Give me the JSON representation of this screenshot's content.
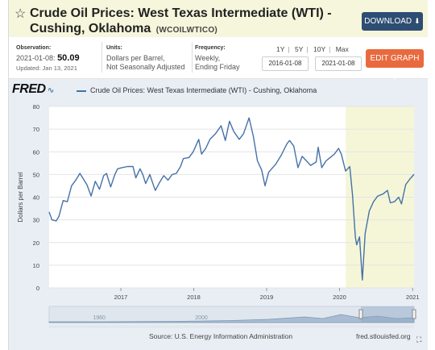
{
  "header": {
    "title": "Crude Oil Prices: West Texas Intermediate (WTI) - Cushing, Oklahoma",
    "series_code": "(WCOILWTICO)",
    "download_label": "DOWNLOAD"
  },
  "meta": {
    "observation_label": "Observation:",
    "observation_date": "2021-01-08:",
    "observation_value": "50.09",
    "updated": "Updated: Jan 13, 2021",
    "units_label": "Units:",
    "units_line1": "Dollars per Barrel,",
    "units_line2": "Not Seasonally Adjusted",
    "frequency_label": "Frequency:",
    "frequency_line1": "Weekly,",
    "frequency_line2": "Ending Friday"
  },
  "range_buttons": [
    "1Y",
    "5Y",
    "10Y",
    "Max"
  ],
  "date_start": "2016-01-08",
  "date_end": "2021-01-08",
  "edit_label": "EDIT GRAPH",
  "graph": {
    "logo": "FRED",
    "legend": "Crude Oil Prices: West Texas Intermediate (WTI) - Cushing, Oklahoma",
    "source": "Source: U.S. Energy Information Administration",
    "site": "fred.stlouisfed.org"
  },
  "chart_data": {
    "type": "line",
    "ylabel": "Dollars per Barrel",
    "ylim": [
      0,
      80
    ],
    "yticks": [
      0,
      10,
      20,
      30,
      40,
      50,
      60,
      70,
      80
    ],
    "xlim": [
      "2016-01-08",
      "2021-01-08"
    ],
    "xticks": [
      {
        "label": "2017",
        "date": "2017-01-01"
      },
      {
        "label": "2018",
        "date": "2018-01-01"
      },
      {
        "label": "2019",
        "date": "2019-01-01"
      },
      {
        "label": "2020",
        "date": "2020-01-01"
      },
      {
        "label": "2021",
        "date": "2021-01-01"
      }
    ],
    "recession": {
      "start": "2020-02-01",
      "end": "2021-01-08"
    },
    "navigator_labels": [
      "1960",
      "2000"
    ],
    "grid": true,
    "series": [
      {
        "color": "#4572a7",
        "points": [
          [
            "2016-01-08",
            33.5
          ],
          [
            "2016-01-22",
            30.0
          ],
          [
            "2016-02-12",
            29.5
          ],
          [
            "2016-02-26",
            31.5
          ],
          [
            "2016-03-18",
            38.5
          ],
          [
            "2016-04-08",
            38.0
          ],
          [
            "2016-04-29",
            45.0
          ],
          [
            "2016-05-20",
            47.5
          ],
          [
            "2016-06-10",
            50.5
          ],
          [
            "2016-06-24",
            48.5
          ],
          [
            "2016-07-15",
            45.5
          ],
          [
            "2016-08-05",
            40.5
          ],
          [
            "2016-08-26",
            47.0
          ],
          [
            "2016-09-16",
            43.5
          ],
          [
            "2016-10-07",
            49.5
          ],
          [
            "2016-10-21",
            50.5
          ],
          [
            "2016-11-11",
            44.5
          ],
          [
            "2016-12-02",
            50.0
          ],
          [
            "2016-12-16",
            52.5
          ],
          [
            "2017-01-06",
            53.0
          ],
          [
            "2017-02-03",
            53.5
          ],
          [
            "2017-03-03",
            53.5
          ],
          [
            "2017-03-17",
            48.5
          ],
          [
            "2017-04-07",
            52.5
          ],
          [
            "2017-04-21",
            50.0
          ],
          [
            "2017-05-05",
            46.0
          ],
          [
            "2017-05-26",
            50.0
          ],
          [
            "2017-06-16",
            44.5
          ],
          [
            "2017-06-23",
            43.0
          ],
          [
            "2017-07-14",
            46.5
          ],
          [
            "2017-08-04",
            49.5
          ],
          [
            "2017-08-25",
            47.5
          ],
          [
            "2017-09-15",
            50.0
          ],
          [
            "2017-10-06",
            50.5
          ],
          [
            "2017-10-27",
            53.5
          ],
          [
            "2017-11-10",
            57.0
          ],
          [
            "2017-12-08",
            57.5
          ],
          [
            "2017-12-29",
            60.0
          ],
          [
            "2018-01-26",
            65.5
          ],
          [
            "2018-02-09",
            59.0
          ],
          [
            "2018-03-02",
            61.5
          ],
          [
            "2018-03-23",
            65.5
          ],
          [
            "2018-04-20",
            68.0
          ],
          [
            "2018-05-18",
            71.5
          ],
          [
            "2018-06-08",
            65.0
          ],
          [
            "2018-06-29",
            73.5
          ],
          [
            "2018-07-20",
            69.0
          ],
          [
            "2018-08-17",
            65.5
          ],
          [
            "2018-09-07",
            68.0
          ],
          [
            "2018-10-05",
            75.0
          ],
          [
            "2018-10-26",
            67.0
          ],
          [
            "2018-11-16",
            56.0
          ],
          [
            "2018-12-07",
            52.0
          ],
          [
            "2018-12-24",
            45.0
          ],
          [
            "2019-01-11",
            51.0
          ],
          [
            "2019-02-15",
            54.5
          ],
          [
            "2019-03-15",
            58.5
          ],
          [
            "2019-04-12",
            63.5
          ],
          [
            "2019-04-26",
            65.0
          ],
          [
            "2019-05-17",
            62.5
          ],
          [
            "2019-06-07",
            53.0
          ],
          [
            "2019-06-28",
            58.0
          ],
          [
            "2019-07-19",
            56.0
          ],
          [
            "2019-08-09",
            54.0
          ],
          [
            "2019-09-06",
            55.5
          ],
          [
            "2019-09-16",
            62.0
          ],
          [
            "2019-10-04",
            53.0
          ],
          [
            "2019-10-25",
            56.0
          ],
          [
            "2019-11-15",
            57.5
          ],
          [
            "2019-12-06",
            59.0
          ],
          [
            "2019-12-27",
            61.5
          ],
          [
            "2020-01-10",
            59.0
          ],
          [
            "2020-01-31",
            51.5
          ],
          [
            "2020-02-21",
            53.5
          ],
          [
            "2020-03-06",
            41.0
          ],
          [
            "2020-03-20",
            22.5
          ],
          [
            "2020-03-27",
            19.0
          ],
          [
            "2020-04-10",
            22.5
          ],
          [
            "2020-04-24",
            3.5
          ],
          [
            "2020-05-08",
            24.0
          ],
          [
            "2020-05-29",
            34.0
          ],
          [
            "2020-06-19",
            38.0
          ],
          [
            "2020-07-10",
            40.5
          ],
          [
            "2020-08-07",
            41.5
          ],
          [
            "2020-08-28",
            43.0
          ],
          [
            "2020-09-11",
            37.5
          ],
          [
            "2020-10-02",
            38.0
          ],
          [
            "2020-10-23",
            40.0
          ],
          [
            "2020-11-06",
            37.0
          ],
          [
            "2020-11-27",
            45.5
          ],
          [
            "2020-12-18",
            48.0
          ],
          [
            "2021-01-08",
            50.09
          ]
        ]
      }
    ]
  }
}
